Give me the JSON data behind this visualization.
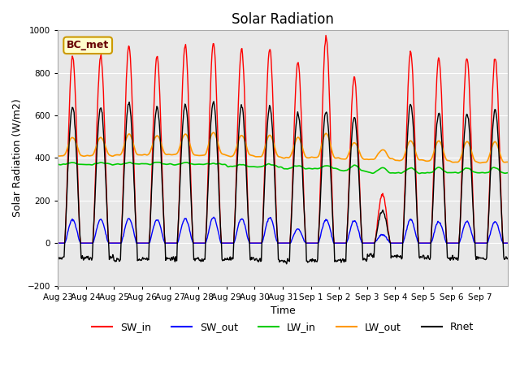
{
  "title": "Solar Radiation",
  "xlabel": "Time",
  "ylabel": "Solar Radiation (W/m2)",
  "ylim": [
    -200,
    1000
  ],
  "yticks": [
    -200,
    0,
    200,
    400,
    600,
    800,
    1000
  ],
  "x_labels": [
    "Aug 23",
    "Aug 24",
    "Aug 25",
    "Aug 26",
    "Aug 27",
    "Aug 28",
    "Aug 29",
    "Aug 30",
    "Aug 31",
    "Sep 1",
    "Sep 2",
    "Sep 3",
    "Sep 4",
    "Sep 5",
    "Sep 6",
    "Sep 7"
  ],
  "colors": {
    "SW_in": "#ff0000",
    "SW_out": "#0000ff",
    "LW_in": "#00cc00",
    "LW_out": "#ff9900",
    "Rnet": "#000000"
  },
  "legend_label": "BC_met",
  "background_color": "#e8e8e8",
  "figure_background": "#ffffff",
  "n_days": 16,
  "SW_in_peaks": [
    880,
    880,
    930,
    880,
    930,
    940,
    910,
    910,
    850,
    970,
    780,
    230,
    900,
    870,
    870,
    870
  ],
  "SW_out_peaks": [
    110,
    110,
    115,
    110,
    115,
    120,
    115,
    120,
    65,
    110,
    105,
    40,
    110,
    100,
    100,
    100
  ],
  "LW_in_base": [
    370,
    370,
    370,
    370,
    370,
    370,
    360,
    360,
    350,
    350,
    340,
    330,
    330,
    330,
    330,
    330
  ],
  "LW_in_day_bump": [
    15,
    15,
    15,
    20,
    15,
    10,
    20,
    25,
    30,
    30,
    50,
    50,
    50,
    50,
    50,
    50
  ],
  "LW_out_base": [
    410,
    410,
    415,
    415,
    415,
    415,
    410,
    405,
    400,
    400,
    395,
    395,
    390,
    385,
    380,
    380
  ],
  "LW_out_day_bump": [
    90,
    90,
    100,
    90,
    100,
    110,
    100,
    105,
    100,
    120,
    80,
    45,
    95,
    100,
    100,
    100
  ],
  "Rnet_peaks": [
    640,
    640,
    660,
    640,
    655,
    660,
    645,
    640,
    610,
    620,
    590,
    150,
    650,
    610,
    610,
    630
  ],
  "Rnet_night": [
    -70,
    -70,
    -80,
    -75,
    -75,
    -80,
    -75,
    -80,
    -85,
    -80,
    -80,
    -60,
    -65,
    -70,
    -70,
    -70
  ]
}
